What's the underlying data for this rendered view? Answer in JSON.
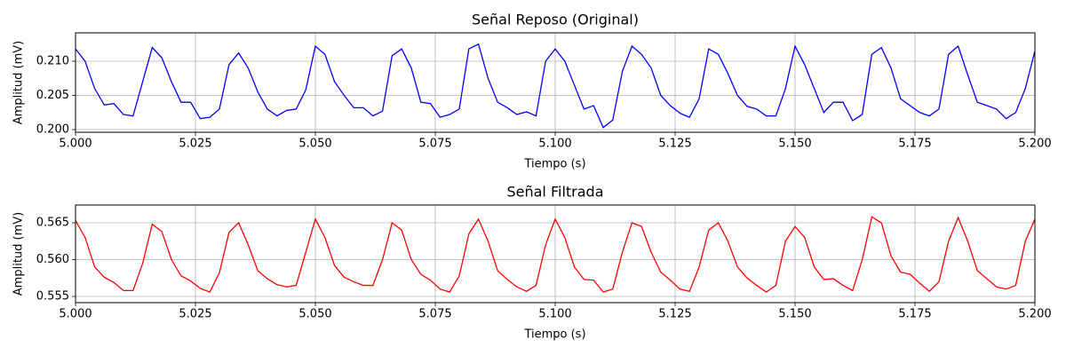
{
  "chart_data": [
    {
      "type": "line",
      "title": "Señal Reposo (Original)",
      "x_label": "Tiempo (s)",
      "y_label": "Amplitud (mV)",
      "color": "#0000ff",
      "grid": true,
      "xlim": [
        5.0,
        5.2
      ],
      "ylim": [
        0.19961,
        0.21415
      ],
      "xticks": [
        {
          "value": 5.0,
          "label": "5.000"
        },
        {
          "value": 5.025,
          "label": "5.025"
        },
        {
          "value": 5.05,
          "label": "5.050"
        },
        {
          "value": 5.075,
          "label": "5.075"
        },
        {
          "value": 5.1,
          "label": "5.100"
        },
        {
          "value": 5.125,
          "label": "5.125"
        },
        {
          "value": 5.15,
          "label": "5.150"
        },
        {
          "value": 5.175,
          "label": "5.175"
        },
        {
          "value": 5.2,
          "label": "5.200"
        }
      ],
      "yticks": [
        {
          "value": 0.2,
          "label": "0.200"
        },
        {
          "value": 0.205,
          "label": "0.205"
        },
        {
          "value": 0.21,
          "label": "0.210"
        }
      ],
      "x": [
        5.0,
        5.002,
        5.004,
        5.006,
        5.008,
        5.01,
        5.012,
        5.014,
        5.016,
        5.018,
        5.02,
        5.022,
        5.024,
        5.026,
        5.028,
        5.03,
        5.032,
        5.034,
        5.036,
        5.038,
        5.04,
        5.042,
        5.044,
        5.046,
        5.048,
        5.05,
        5.052,
        5.054,
        5.056,
        5.058,
        5.06,
        5.062,
        5.064,
        5.066,
        5.068,
        5.07,
        5.072,
        5.074,
        5.076,
        5.078,
        5.08,
        5.082,
        5.084,
        5.086,
        5.088,
        5.09,
        5.092,
        5.094,
        5.096,
        5.098,
        5.1,
        5.102,
        5.104,
        5.106,
        5.108,
        5.11,
        5.112,
        5.114,
        5.116,
        5.118,
        5.12,
        5.122,
        5.124,
        5.126,
        5.128,
        5.13,
        5.132,
        5.134,
        5.136,
        5.138,
        5.14,
        5.142,
        5.144,
        5.146,
        5.148,
        5.15,
        5.152,
        5.154,
        5.156,
        5.158,
        5.16,
        5.162,
        5.164,
        5.166,
        5.168,
        5.17,
        5.172,
        5.174,
        5.176,
        5.178,
        5.18,
        5.182,
        5.184,
        5.186,
        5.188,
        5.19,
        5.192,
        5.194,
        5.196,
        5.198,
        5.2
      ],
      "values": [
        0.2118,
        0.21,
        0.206,
        0.2036,
        0.2038,
        0.2022,
        0.202,
        0.207,
        0.212,
        0.2105,
        0.207,
        0.204,
        0.204,
        0.2016,
        0.2018,
        0.203,
        0.2095,
        0.2112,
        0.209,
        0.2055,
        0.203,
        0.202,
        0.2028,
        0.203,
        0.2058,
        0.2122,
        0.211,
        0.207,
        0.205,
        0.2032,
        0.2032,
        0.202,
        0.2027,
        0.2108,
        0.2118,
        0.209,
        0.204,
        0.2038,
        0.2018,
        0.2022,
        0.203,
        0.2118,
        0.2125,
        0.2075,
        0.204,
        0.2032,
        0.2022,
        0.2026,
        0.202,
        0.21,
        0.2118,
        0.21,
        0.2065,
        0.203,
        0.2035,
        0.2003,
        0.2014,
        0.2085,
        0.2122,
        0.211,
        0.209,
        0.205,
        0.2035,
        0.2024,
        0.2018,
        0.2045,
        0.2118,
        0.211,
        0.2082,
        0.205,
        0.2034,
        0.203,
        0.202,
        0.202,
        0.206,
        0.2122,
        0.2095,
        0.206,
        0.2025,
        0.204,
        0.204,
        0.2013,
        0.2022,
        0.211,
        0.212,
        0.209,
        0.2045,
        0.2035,
        0.2025,
        0.202,
        0.203,
        0.211,
        0.2122,
        0.208,
        0.204,
        0.2035,
        0.203,
        0.2016,
        0.2025,
        0.206,
        0.2115
      ]
    },
    {
      "type": "line",
      "title": "Señal Filtrada",
      "x_label": "Tiempo (s)",
      "y_label": "Amplitud (mV)",
      "color": "#ff0000",
      "grid": true,
      "xlim": [
        5.0,
        5.2
      ],
      "ylim": [
        0.55416,
        0.56741
      ],
      "xticks": [
        {
          "value": 5.0,
          "label": "5.000"
        },
        {
          "value": 5.025,
          "label": "5.025"
        },
        {
          "value": 5.05,
          "label": "5.050"
        },
        {
          "value": 5.075,
          "label": "5.075"
        },
        {
          "value": 5.1,
          "label": "5.100"
        },
        {
          "value": 5.125,
          "label": "5.125"
        },
        {
          "value": 5.15,
          "label": "5.150"
        },
        {
          "value": 5.175,
          "label": "5.175"
        },
        {
          "value": 5.2,
          "label": "5.200"
        }
      ],
      "yticks": [
        0.555,
        {
          "value": 0.56,
          "label": "0.560"
        },
        0.565
      ],
      "x": [
        5.0,
        5.002,
        5.004,
        5.006,
        5.008,
        5.01,
        5.012,
        5.014,
        5.016,
        5.018,
        5.02,
        5.022,
        5.024,
        5.026,
        5.028,
        5.03,
        5.032,
        5.034,
        5.036,
        5.038,
        5.04,
        5.042,
        5.044,
        5.046,
        5.048,
        5.05,
        5.052,
        5.054,
        5.056,
        5.058,
        5.06,
        5.062,
        5.064,
        5.066,
        5.068,
        5.07,
        5.072,
        5.074,
        5.076,
        5.078,
        5.08,
        5.082,
        5.084,
        5.086,
        5.088,
        5.09,
        5.092,
        5.094,
        5.096,
        5.098,
        5.1,
        5.102,
        5.104,
        5.106,
        5.108,
        5.11,
        5.112,
        5.114,
        5.116,
        5.118,
        5.12,
        5.122,
        5.124,
        5.126,
        5.128,
        5.13,
        5.132,
        5.134,
        5.136,
        5.138,
        5.14,
        5.142,
        5.144,
        5.146,
        5.148,
        5.15,
        5.152,
        5.154,
        5.156,
        5.158,
        5.16,
        5.162,
        5.164,
        5.166,
        5.168,
        5.17,
        5.172,
        5.174,
        5.176,
        5.178,
        5.18,
        5.182,
        5.184,
        5.186,
        5.188,
        5.19,
        5.192,
        5.194,
        5.196,
        5.198,
        5.2
      ],
      "values": [
        0.5653,
        0.563,
        0.559,
        0.5576,
        0.5569,
        0.5558,
        0.5558,
        0.5595,
        0.5648,
        0.5638,
        0.56,
        0.5578,
        0.5571,
        0.5561,
        0.5556,
        0.5582,
        0.5637,
        0.565,
        0.562,
        0.5585,
        0.5574,
        0.5566,
        0.5563,
        0.5565,
        0.561,
        0.5655,
        0.563,
        0.5592,
        0.5576,
        0.557,
        0.5565,
        0.5565,
        0.56,
        0.565,
        0.564,
        0.56,
        0.558,
        0.5572,
        0.556,
        0.5556,
        0.5578,
        0.5635,
        0.5655,
        0.5625,
        0.5585,
        0.5573,
        0.5563,
        0.5557,
        0.5565,
        0.562,
        0.5655,
        0.563,
        0.559,
        0.5573,
        0.5572,
        0.5556,
        0.556,
        0.561,
        0.565,
        0.5645,
        0.561,
        0.5583,
        0.5572,
        0.556,
        0.5557,
        0.559,
        0.564,
        0.565,
        0.5625,
        0.559,
        0.5575,
        0.5565,
        0.5556,
        0.5565,
        0.5625,
        0.5645,
        0.563,
        0.559,
        0.5573,
        0.5574,
        0.5565,
        0.5558,
        0.56,
        0.5658,
        0.565,
        0.5605,
        0.5583,
        0.558,
        0.5568,
        0.5557,
        0.557,
        0.5625,
        0.5657,
        0.5625,
        0.5585,
        0.5574,
        0.5563,
        0.556,
        0.5565,
        0.5625,
        0.5655
      ]
    }
  ]
}
